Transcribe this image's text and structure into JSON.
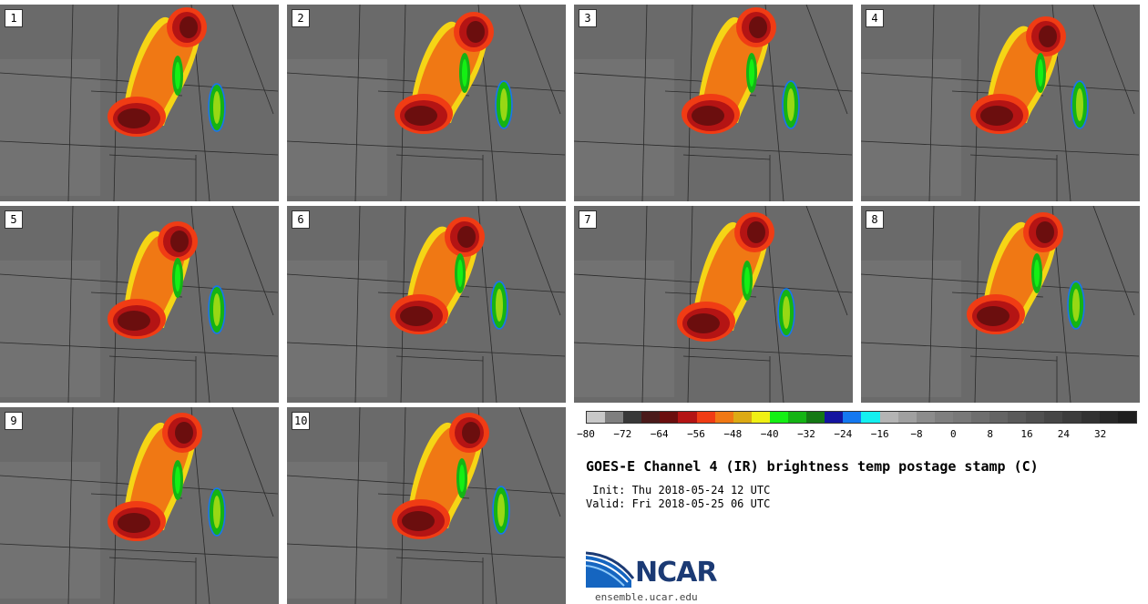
{
  "panels": [
    {
      "label": "1"
    },
    {
      "label": "2"
    },
    {
      "label": "3"
    },
    {
      "label": "4"
    },
    {
      "label": "5"
    },
    {
      "label": "6"
    },
    {
      "label": "7"
    },
    {
      "label": "8"
    },
    {
      "label": "9"
    },
    {
      "label": "10"
    }
  ],
  "colorbar": {
    "colors": [
      "#c8c8c8",
      "#7f7f7f",
      "#383838",
      "#4a1a1a",
      "#6b0e0e",
      "#b41414",
      "#f03c14",
      "#f07814",
      "#dcaa14",
      "#f0f014",
      "#14f014",
      "#14b414",
      "#147814",
      "#1414a0",
      "#1478f0",
      "#14f0f0",
      "#b4b4b4",
      "#a0a0a0",
      "#8c8c8c",
      "#7f7f7f",
      "#787878",
      "#6e6e6e",
      "#646464",
      "#5a5a5a",
      "#505050",
      "#464646",
      "#3c3c3c",
      "#323232",
      "#282828",
      "#1e1e1e"
    ],
    "ticks": [
      "−80",
      "−72",
      "−64",
      "−56",
      "−48",
      "−40",
      "−32",
      "−24",
      "−16",
      "−8",
      "0",
      "8",
      "16",
      "24",
      "32"
    ]
  },
  "title": "GOES-E Channel 4 (IR) brightness temp postage stamp (C)",
  "init": " Init: Thu 2018-05-24 12 UTC",
  "valid": "Valid: Fri 2018-05-25 06 UTC",
  "logo_text": "NCAR",
  "website": "ensemble.ucar.edu"
}
